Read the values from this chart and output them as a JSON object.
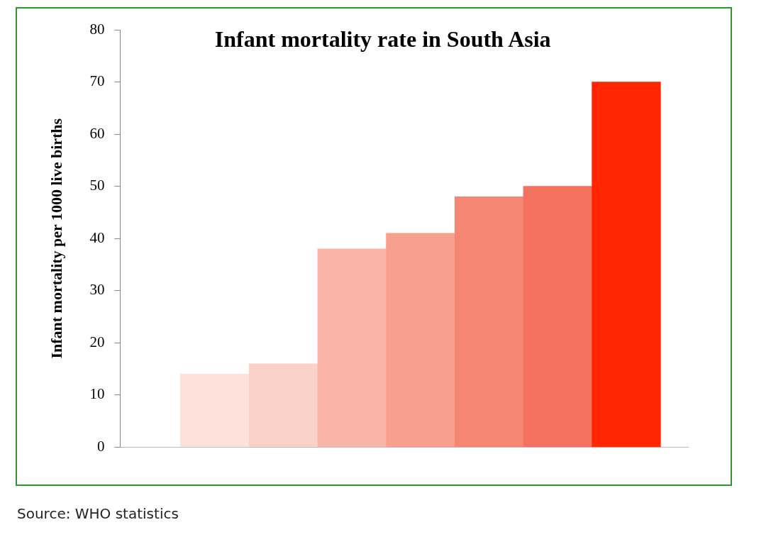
{
  "chart_data": {
    "type": "bar",
    "title": "Infant mortality rate in South Asia",
    "ylabel": "Infant mortality per 1000 live births",
    "categories": [
      null,
      null,
      null,
      null,
      null,
      null,
      null
    ],
    "values": [
      14,
      16,
      38,
      41,
      48,
      50,
      70
    ],
    "colors": [
      "#fde2dc",
      "#fbd2c9",
      "#f9b5a8",
      "#f7a090",
      "#f58674",
      "#f3725f",
      "#ff2600"
    ],
    "ylim": [
      0,
      80
    ],
    "yticks": [
      0,
      10,
      20,
      30,
      40,
      50,
      60,
      70,
      80
    ],
    "grid": false,
    "annotations": [
      "Source: WHO statistics"
    ]
  }
}
